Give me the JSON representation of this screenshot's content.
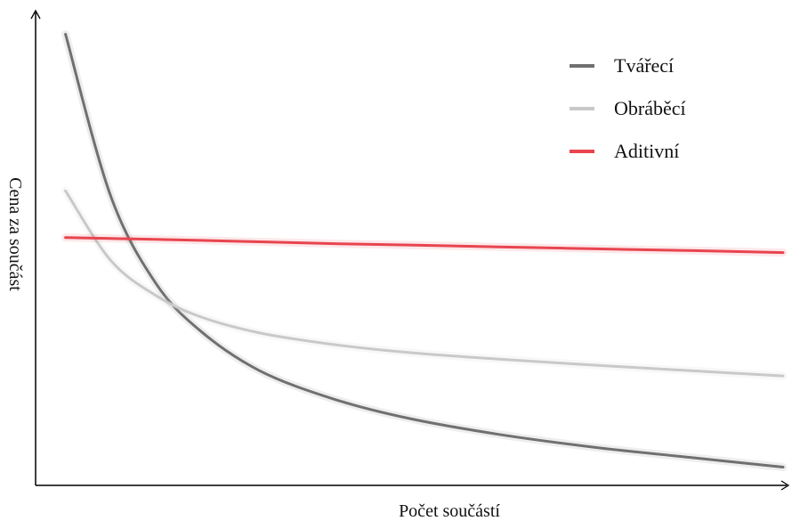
{
  "chart_data": {
    "type": "line",
    "title": "",
    "xlabel": "Počet součástí",
    "ylabel": "Cena za součást",
    "xlim": [
      0,
      100
    ],
    "ylim": [
      0,
      100
    ],
    "grid": false,
    "legend_position": "top-right",
    "x": [
      4,
      10,
      16,
      22,
      30,
      40,
      50,
      62,
      75,
      88,
      100
    ],
    "series": [
      {
        "name": "Tvářecí",
        "color": "#707070",
        "values": [
          96.5,
          62.1,
          43.4,
          33.1,
          24.5,
          18.4,
          14.3,
          10.9,
          8.1,
          5.9,
          3.9
        ]
      },
      {
        "name": "Obráběcí",
        "color": "#c9c9c9",
        "values": [
          63.0,
          48.2,
          40.7,
          36.1,
          32.6,
          30.1,
          28.4,
          27.0,
          25.7,
          24.5,
          23.4
        ]
      },
      {
        "name": "Aditivní",
        "color": "#e8454f",
        "values": [
          53.0,
          52.8,
          52.6,
          52.4,
          52.1,
          51.7,
          51.4,
          51.0,
          50.6,
          50.2,
          49.8
        ]
      }
    ]
  }
}
